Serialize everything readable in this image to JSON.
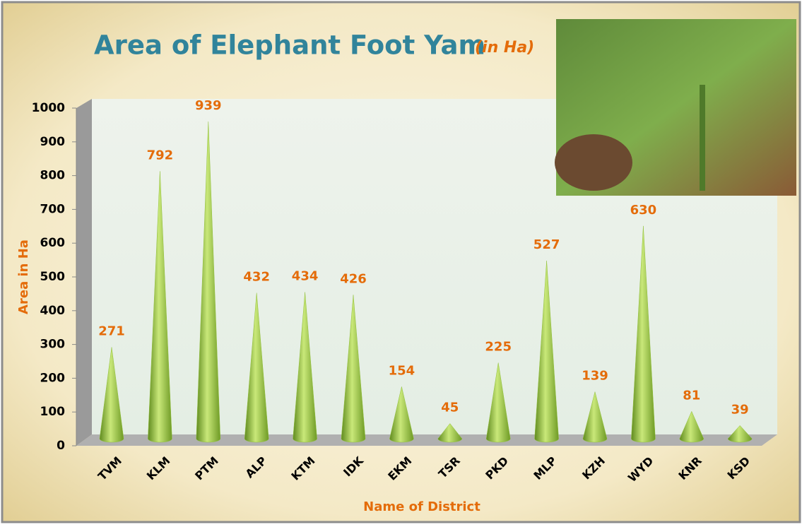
{
  "chart_data": {
    "type": "cone",
    "title": "Area of Elephant Foot Yam",
    "title_unit": "(in Ha)",
    "y_label": "Area in Ha",
    "x_label": "Name of District",
    "categories": [
      "TVM",
      "KLM",
      "PTM",
      "ALP",
      "KTM",
      "IDK",
      "EKM",
      "TSR",
      "PKD",
      "MLP",
      "KZH",
      "WYD",
      "KNR",
      "KSD"
    ],
    "values": [
      271,
      792,
      939,
      432,
      434,
      426,
      154,
      45,
      225,
      527,
      139,
      630,
      81,
      39
    ],
    "color": "#92c13c",
    "label_color": "#e46c0a",
    "ylim": [
      0,
      1000
    ],
    "yticks": [
      0,
      100,
      200,
      300,
      400,
      500,
      600,
      700,
      800,
      900,
      1000
    ]
  }
}
